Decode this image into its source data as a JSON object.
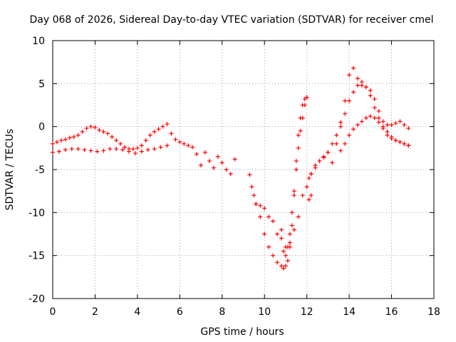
{
  "chart_data": {
    "type": "scatter",
    "title": "Day 068 of 2026, Sidereal Day-to-day VTEC variation (SDTVAR) for receiver cmel",
    "xlabel": "GPS time / hours",
    "ylabel": "SDTVAR / TECUs",
    "xlim": [
      0,
      18
    ],
    "ylim": [
      -20,
      10
    ],
    "xticks": [
      0,
      2,
      4,
      6,
      8,
      10,
      12,
      14,
      16,
      18
    ],
    "yticks": [
      -20,
      -15,
      -10,
      -5,
      0,
      5,
      10
    ],
    "grid": true,
    "marker": "+",
    "color": "#ff0000",
    "series": [
      {
        "name": "upper_trace",
        "x": [
          0.0,
          0.2,
          0.4,
          0.6,
          0.8,
          1.0,
          1.2,
          1.4,
          1.6,
          1.8,
          2.0,
          2.2,
          2.4,
          2.6,
          2.8,
          3.0,
          3.2,
          3.4,
          3.6,
          3.8,
          4.0,
          4.2,
          4.4,
          4.6,
          4.8,
          5.0,
          5.2,
          5.4,
          5.6,
          5.8,
          6.0,
          6.2,
          6.4,
          6.6
        ],
        "y": [
          -2.0,
          -1.8,
          -1.6,
          -1.5,
          -1.3,
          -1.2,
          -1.0,
          -0.6,
          -0.2,
          0.0,
          -0.1,
          -0.4,
          -0.6,
          -0.8,
          -1.2,
          -1.6,
          -2.0,
          -2.4,
          -2.6,
          -2.6,
          -2.5,
          -2.2,
          -1.6,
          -1.0,
          -0.6,
          -0.3,
          0.0,
          0.3,
          -0.8,
          -1.5,
          -1.8,
          -2.0,
          -2.2,
          -2.4
        ]
      },
      {
        "name": "lower_trace",
        "x": [
          0.0,
          0.3,
          0.6,
          0.9,
          1.2,
          1.5,
          1.8,
          2.1,
          2.4,
          2.7,
          3.0,
          3.3,
          3.6,
          3.9,
          4.2,
          4.5,
          4.8,
          5.1,
          5.4
        ],
        "y": [
          -3.0,
          -2.9,
          -2.7,
          -2.6,
          -2.6,
          -2.7,
          -2.8,
          -2.9,
          -2.8,
          -2.6,
          -2.6,
          -2.7,
          -2.9,
          -3.1,
          -2.9,
          -2.7,
          -2.6,
          -2.4,
          -2.2
        ]
      },
      {
        "name": "mid_gap_trace",
        "x": [
          6.8,
          7.0,
          7.2,
          7.4,
          7.6,
          7.8,
          8.0,
          8.2,
          8.4,
          8.6
        ],
        "y": [
          -3.2,
          -4.5,
          -3.0,
          -4.0,
          -4.8,
          -3.5,
          -4.2,
          -5.0,
          -5.5,
          -3.8
        ]
      },
      {
        "name": "main_dip_trace",
        "x": [
          9.3,
          9.4,
          9.5,
          9.6,
          9.8,
          10.0,
          10.2,
          10.4,
          10.6,
          10.8,
          10.9,
          11.0,
          11.1,
          11.2,
          11.3,
          11.4,
          11.5,
          11.6,
          11.7,
          11.8,
          11.9,
          12.0,
          12.1,
          12.2,
          12.4,
          12.6,
          12.8,
          13.0,
          13.2,
          13.4,
          13.6,
          13.8,
          14.0,
          14.2,
          14.4,
          14.6,
          14.8,
          15.0,
          15.2,
          15.4,
          15.6,
          15.8,
          16.0,
          16.2,
          16.4,
          16.6,
          16.8
        ],
        "y": [
          -5.6,
          -7.0,
          -8.0,
          -9.0,
          -10.5,
          -12.5,
          -14.0,
          -15.0,
          -15.8,
          -16.2,
          -16.5,
          -16.2,
          -15.6,
          -14.0,
          -11.5,
          -8.0,
          -4.0,
          -1.0,
          1.0,
          2.5,
          3.2,
          3.4,
          -6.0,
          -5.5,
          -4.8,
          -4.0,
          -3.6,
          -3.0,
          -4.2,
          -2.0,
          0.5,
          3.0,
          6.0,
          6.8,
          5.6,
          4.8,
          4.6,
          4.2,
          3.2,
          1.8,
          0.6,
          0.2,
          0.2,
          0.4,
          0.6,
          0.2,
          -0.2
        ]
      },
      {
        "name": "secondary_dip_trace",
        "x": [
          9.6,
          9.8,
          10.0,
          10.2,
          10.4,
          10.6,
          10.8,
          11.0,
          11.2,
          11.4,
          11.6,
          11.8,
          12.0,
          12.2,
          12.4,
          12.6,
          12.8,
          13.0,
          13.2,
          13.4,
          13.6,
          13.8,
          14.0,
          14.2,
          14.4,
          14.6,
          14.8,
          15.0,
          15.2,
          15.4,
          15.6,
          15.8,
          16.0,
          16.2,
          16.4,
          16.6,
          16.8
        ],
        "y": [
          -9.0,
          -9.2,
          -9.5,
          -10.5,
          -11.0,
          -12.5,
          -13.0,
          -14.0,
          -13.5,
          -12.0,
          -10.5,
          -8.0,
          -7.0,
          -5.5,
          -4.5,
          -4.0,
          -3.5,
          -3.0,
          -2.0,
          -1.0,
          0.0,
          1.5,
          3.0,
          4.0,
          4.8,
          5.2,
          4.6,
          3.6,
          2.2,
          1.0,
          -0.2,
          -1.0,
          -1.4,
          -1.6,
          -1.8,
          -2.0,
          -2.2
        ]
      },
      {
        "name": "lower_late_trace",
        "x": [
          13.6,
          13.8,
          14.0,
          14.2,
          14.4,
          14.6,
          14.8,
          15.0,
          15.2,
          15.4,
          15.6,
          15.8,
          16.0,
          16.2,
          16.4,
          16.6,
          16.8
        ],
        "y": [
          -2.8,
          -2.0,
          -1.0,
          -0.3,
          0.2,
          0.6,
          1.0,
          1.2,
          1.0,
          0.5,
          0.0,
          -0.6,
          -1.2,
          -1.6,
          -1.8,
          -2.0,
          -2.2
        ]
      },
      {
        "name": "steep_rise_trace",
        "x": [
          10.8,
          10.9,
          11.0,
          11.1,
          11.2,
          11.3,
          11.4,
          11.5,
          11.6,
          11.7,
          11.8,
          11.9,
          12.0,
          12.1,
          12.2
        ],
        "y": [
          -12.0,
          -14.5,
          -15.0,
          -14.0,
          -12.5,
          -10.0,
          -7.5,
          -5.0,
          -2.5,
          -0.5,
          1.0,
          2.5,
          3.4,
          -8.5,
          -8.0
        ]
      }
    ]
  }
}
